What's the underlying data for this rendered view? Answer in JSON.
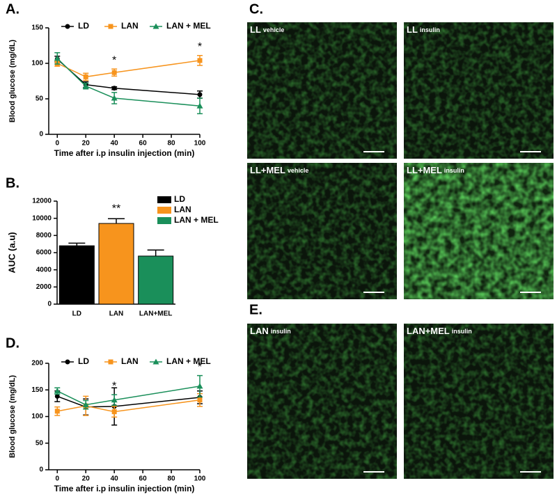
{
  "chart_data": [
    {
      "type": "line",
      "panel": "A.",
      "ylabel": "Blood glucose (mg/dL)",
      "xlabel": "Time after i.p insulin injection (min)",
      "x": [
        0,
        20,
        40,
        100
      ],
      "xlim": [
        -6,
        100
      ],
      "xticks": [
        0,
        20,
        40,
        60,
        80,
        100
      ],
      "ylim": [
        0,
        150
      ],
      "yticks": [
        0,
        50,
        100,
        150
      ],
      "series": [
        {
          "name": "LD",
          "color": "#000000",
          "marker": "circle",
          "values": [
            106,
            70,
            65,
            56
          ],
          "errors": [
            4,
            4,
            2,
            5
          ]
        },
        {
          "name": "LAN",
          "color": "#f7941d",
          "marker": "square",
          "values": [
            100,
            81,
            87,
            104
          ],
          "errors": [
            4,
            5,
            5,
            7
          ],
          "annotations": [
            null,
            null,
            "*",
            "*"
          ]
        },
        {
          "name": "LAN + MEL",
          "color": "#1a8f5a",
          "marker": "triangle",
          "values": [
            107,
            68,
            51,
            40
          ],
          "errors": [
            8,
            4,
            8,
            11
          ]
        }
      ]
    },
    {
      "type": "bar",
      "panel": "B.",
      "ylabel": "AUC (a.u)",
      "categories": [
        "LD",
        "LAN",
        "LAN+MEL"
      ],
      "values": [
        6800,
        9400,
        5600
      ],
      "errors": [
        300,
        550,
        700
      ],
      "colors": [
        "#000000",
        "#f7941d",
        "#1a8f5a"
      ],
      "legend": [
        "LD",
        "LAN",
        "LAN + MEL"
      ],
      "annotations": [
        null,
        "**",
        null
      ],
      "ylim": [
        0,
        12000
      ],
      "yticks": [
        0,
        2000,
        4000,
        6000,
        8000,
        10000,
        12000
      ]
    },
    {
      "type": "line",
      "panel": "D.",
      "ylabel": "Blood glucose (mg/dL)",
      "xlabel": "Time after i.p insulin injection (min)",
      "x": [
        0,
        20,
        40,
        100
      ],
      "xlim": [
        -6,
        100
      ],
      "xticks": [
        0,
        20,
        40,
        60,
        80,
        100
      ],
      "ylim": [
        0,
        200
      ],
      "yticks": [
        0,
        50,
        100,
        150,
        200
      ],
      "series": [
        {
          "name": "LD",
          "color": "#000000",
          "marker": "circle",
          "values": [
            138,
            118,
            119,
            136
          ],
          "errors": [
            10,
            15,
            35,
            12
          ]
        },
        {
          "name": "LAN",
          "color": "#f7941d",
          "marker": "square",
          "values": [
            110,
            120,
            109,
            131
          ],
          "errors": [
            8,
            18,
            10,
            12
          ]
        },
        {
          "name": "LAN + MEL",
          "color": "#1a8f5a",
          "marker": "triangle",
          "values": [
            148,
            122,
            131,
            157
          ],
          "errors": [
            6,
            8,
            10,
            20
          ],
          "annotations": [
            null,
            null,
            "*",
            "*"
          ]
        }
      ]
    }
  ],
  "images": {
    "panel_c": "C.",
    "panel_e": "E.",
    "panels": [
      {
        "label": "LL",
        "condition": "vehicle"
      },
      {
        "label": "LL",
        "condition": "insulin"
      },
      {
        "label": "LL+MEL",
        "condition": "vehicle"
      },
      {
        "label": "LL+MEL",
        "condition": "insulin"
      },
      {
        "label": "LAN",
        "condition": "insulin"
      },
      {
        "label": "LAN+MEL",
        "condition": "insulin"
      }
    ]
  }
}
